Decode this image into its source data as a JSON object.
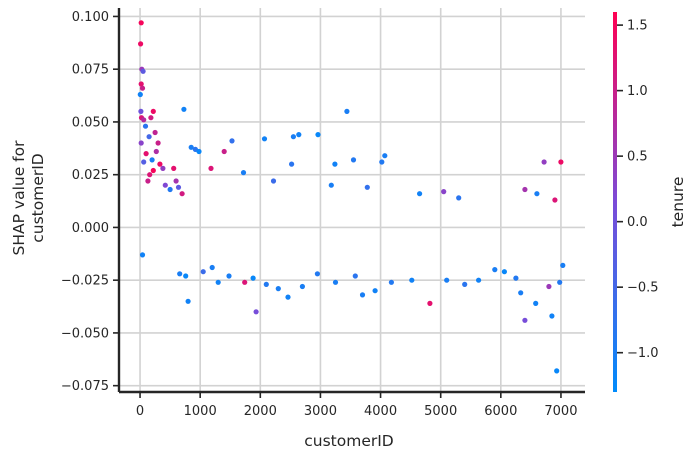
{
  "chart_data": {
    "type": "scatter",
    "xlabel": "customerID",
    "ylabel_lines": [
      "SHAP value for",
      "customerID"
    ],
    "xlim": [
      -350,
      7400
    ],
    "ylim": [
      -0.078,
      0.104
    ],
    "x_ticks": [
      0,
      1000,
      2000,
      3000,
      4000,
      5000,
      6000,
      7000
    ],
    "x_tick_labels": [
      "0",
      "1000",
      "2000",
      "3000",
      "4000",
      "5000",
      "6000",
      "7000"
    ],
    "y_ticks": [
      -0.075,
      -0.05,
      -0.025,
      0.0,
      0.025,
      0.05,
      0.075,
      0.1
    ],
    "y_tick_labels": [
      "−0.075",
      "−0.050",
      "−0.025",
      "0.000",
      "0.025",
      "0.050",
      "0.075",
      "0.100"
    ],
    "grid": true,
    "colorbar": {
      "label": "tenure",
      "range": [
        -1.3,
        1.6
      ],
      "ticks": [
        -1.0,
        -0.5,
        0.0,
        0.5,
        1.0,
        1.5
      ],
      "tick_labels": [
        "−1.0",
        "−0.5",
        "0.0",
        "0.5",
        "1.0",
        "1.5"
      ],
      "colors": [
        "#008bfb",
        "#7b4bd8",
        "#ff0052"
      ]
    },
    "points": [
      {
        "x": 20,
        "y": 0.097,
        "c": 1.5
      },
      {
        "x": 10,
        "y": 0.087,
        "c": 1.4
      },
      {
        "x": 30,
        "y": 0.075,
        "c": 0.5
      },
      {
        "x": 50,
        "y": 0.074,
        "c": -0.2
      },
      {
        "x": 20,
        "y": 0.068,
        "c": 1.3
      },
      {
        "x": 40,
        "y": 0.066,
        "c": 1.0
      },
      {
        "x": 5,
        "y": 0.063,
        "c": -1.1
      },
      {
        "x": 15,
        "y": 0.055,
        "c": 0.0
      },
      {
        "x": 25,
        "y": 0.052,
        "c": 1.2
      },
      {
        "x": 60,
        "y": 0.051,
        "c": 0.8
      },
      {
        "x": 90,
        "y": 0.048,
        "c": -0.8
      },
      {
        "x": 180,
        "y": 0.052,
        "c": 1.1
      },
      {
        "x": 220,
        "y": 0.055,
        "c": 1.4
      },
      {
        "x": 250,
        "y": 0.045,
        "c": 0.9
      },
      {
        "x": 150,
        "y": 0.043,
        "c": -0.5
      },
      {
        "x": 300,
        "y": 0.04,
        "c": 1.0
      },
      {
        "x": 270,
        "y": 0.036,
        "c": 0.7
      },
      {
        "x": 20,
        "y": 0.04,
        "c": 0.3
      },
      {
        "x": 100,
        "y": 0.035,
        "c": 1.3
      },
      {
        "x": 200,
        "y": 0.032,
        "c": -1.0
      },
      {
        "x": 330,
        "y": 0.03,
        "c": 1.4
      },
      {
        "x": 380,
        "y": 0.028,
        "c": 0.4
      },
      {
        "x": 220,
        "y": 0.027,
        "c": 1.5
      },
      {
        "x": 160,
        "y": 0.025,
        "c": 1.2
      },
      {
        "x": 60,
        "y": 0.031,
        "c": -0.3
      },
      {
        "x": 130,
        "y": 0.022,
        "c": 1.0
      },
      {
        "x": 420,
        "y": 0.02,
        "c": 0.2
      },
      {
        "x": 500,
        "y": 0.018,
        "c": -0.9
      },
      {
        "x": 560,
        "y": 0.028,
        "c": 1.3
      },
      {
        "x": 600,
        "y": 0.022,
        "c": 0.6
      },
      {
        "x": 640,
        "y": 0.019,
        "c": -0.2
      },
      {
        "x": 700,
        "y": 0.016,
        "c": 1.1
      },
      {
        "x": 730,
        "y": 0.056,
        "c": -1.1
      },
      {
        "x": 850,
        "y": 0.038,
        "c": -1.0
      },
      {
        "x": 920,
        "y": 0.037,
        "c": -0.8
      },
      {
        "x": 980,
        "y": 0.036,
        "c": -1.2
      },
      {
        "x": 1400,
        "y": 0.036,
        "c": 1.0
      },
      {
        "x": 1530,
        "y": 0.041,
        "c": -0.7
      },
      {
        "x": 2070,
        "y": 0.042,
        "c": -1.1
      },
      {
        "x": 2550,
        "y": 0.043,
        "c": -1.0
      },
      {
        "x": 2640,
        "y": 0.044,
        "c": -1.1
      },
      {
        "x": 2960,
        "y": 0.044,
        "c": -1.2
      },
      {
        "x": 3440,
        "y": 0.055,
        "c": -1.0
      },
      {
        "x": 3550,
        "y": 0.032,
        "c": -0.9
      },
      {
        "x": 3240,
        "y": 0.03,
        "c": -1.1
      },
      {
        "x": 4070,
        "y": 0.034,
        "c": -1.0
      },
      {
        "x": 4020,
        "y": 0.031,
        "c": -0.9
      },
      {
        "x": 2520,
        "y": 0.03,
        "c": -0.8
      },
      {
        "x": 1180,
        "y": 0.028,
        "c": 1.2
      },
      {
        "x": 1720,
        "y": 0.026,
        "c": -1.0
      },
      {
        "x": 2220,
        "y": 0.022,
        "c": -0.6
      },
      {
        "x": 6720,
        "y": 0.031,
        "c": 0.4
      },
      {
        "x": 7000,
        "y": 0.031,
        "c": 1.4
      },
      {
        "x": 6400,
        "y": 0.018,
        "c": 0.6
      },
      {
        "x": 6600,
        "y": 0.016,
        "c": -1.0
      },
      {
        "x": 6900,
        "y": 0.013,
        "c": 1.2
      },
      {
        "x": 5300,
        "y": 0.014,
        "c": -0.8
      },
      {
        "x": 5050,
        "y": 0.017,
        "c": 0.3
      },
      {
        "x": 4650,
        "y": 0.016,
        "c": -1.1
      },
      {
        "x": 3780,
        "y": 0.019,
        "c": -0.7
      },
      {
        "x": 3180,
        "y": 0.02,
        "c": -1.0
      },
      {
        "x": 40,
        "y": -0.013,
        "c": -1.1
      },
      {
        "x": 660,
        "y": -0.022,
        "c": -1.0
      },
      {
        "x": 760,
        "y": -0.023,
        "c": -1.2
      },
      {
        "x": 800,
        "y": -0.035,
        "c": -1.1
      },
      {
        "x": 1050,
        "y": -0.021,
        "c": -0.6
      },
      {
        "x": 1200,
        "y": -0.019,
        "c": -1.0
      },
      {
        "x": 1300,
        "y": -0.026,
        "c": -1.1
      },
      {
        "x": 1480,
        "y": -0.023,
        "c": -1.0
      },
      {
        "x": 1740,
        "y": -0.026,
        "c": 1.2
      },
      {
        "x": 1930,
        "y": -0.04,
        "c": 0.1
      },
      {
        "x": 1880,
        "y": -0.024,
        "c": -1.2
      },
      {
        "x": 2100,
        "y": -0.027,
        "c": -0.9
      },
      {
        "x": 2300,
        "y": -0.029,
        "c": -1.0
      },
      {
        "x": 2460,
        "y": -0.033,
        "c": -1.1
      },
      {
        "x": 2700,
        "y": -0.028,
        "c": -1.0
      },
      {
        "x": 2950,
        "y": -0.022,
        "c": -0.9
      },
      {
        "x": 3250,
        "y": -0.026,
        "c": -1.0
      },
      {
        "x": 3580,
        "y": -0.023,
        "c": -0.8
      },
      {
        "x": 3700,
        "y": -0.032,
        "c": -1.0
      },
      {
        "x": 3910,
        "y": -0.03,
        "c": -1.1
      },
      {
        "x": 4180,
        "y": -0.026,
        "c": -0.9
      },
      {
        "x": 4520,
        "y": -0.025,
        "c": -1.1
      },
      {
        "x": 4820,
        "y": -0.036,
        "c": 1.3
      },
      {
        "x": 5100,
        "y": -0.025,
        "c": -1.0
      },
      {
        "x": 5400,
        "y": -0.027,
        "c": -0.8
      },
      {
        "x": 5630,
        "y": -0.025,
        "c": -1.1
      },
      {
        "x": 5900,
        "y": -0.02,
        "c": -1.0
      },
      {
        "x": 6060,
        "y": -0.021,
        "c": -1.2
      },
      {
        "x": 6250,
        "y": -0.024,
        "c": -0.9
      },
      {
        "x": 6330,
        "y": -0.031,
        "c": -1.0
      },
      {
        "x": 6400,
        "y": -0.044,
        "c": 0.1
      },
      {
        "x": 6580,
        "y": -0.036,
        "c": -1.1
      },
      {
        "x": 6800,
        "y": -0.028,
        "c": 0.5
      },
      {
        "x": 6850,
        "y": -0.042,
        "c": -1.1
      },
      {
        "x": 6930,
        "y": -0.068,
        "c": -1.2
      },
      {
        "x": 6980,
        "y": -0.026,
        "c": -0.9
      },
      {
        "x": 7030,
        "y": -0.018,
        "c": -1.0
      }
    ]
  }
}
